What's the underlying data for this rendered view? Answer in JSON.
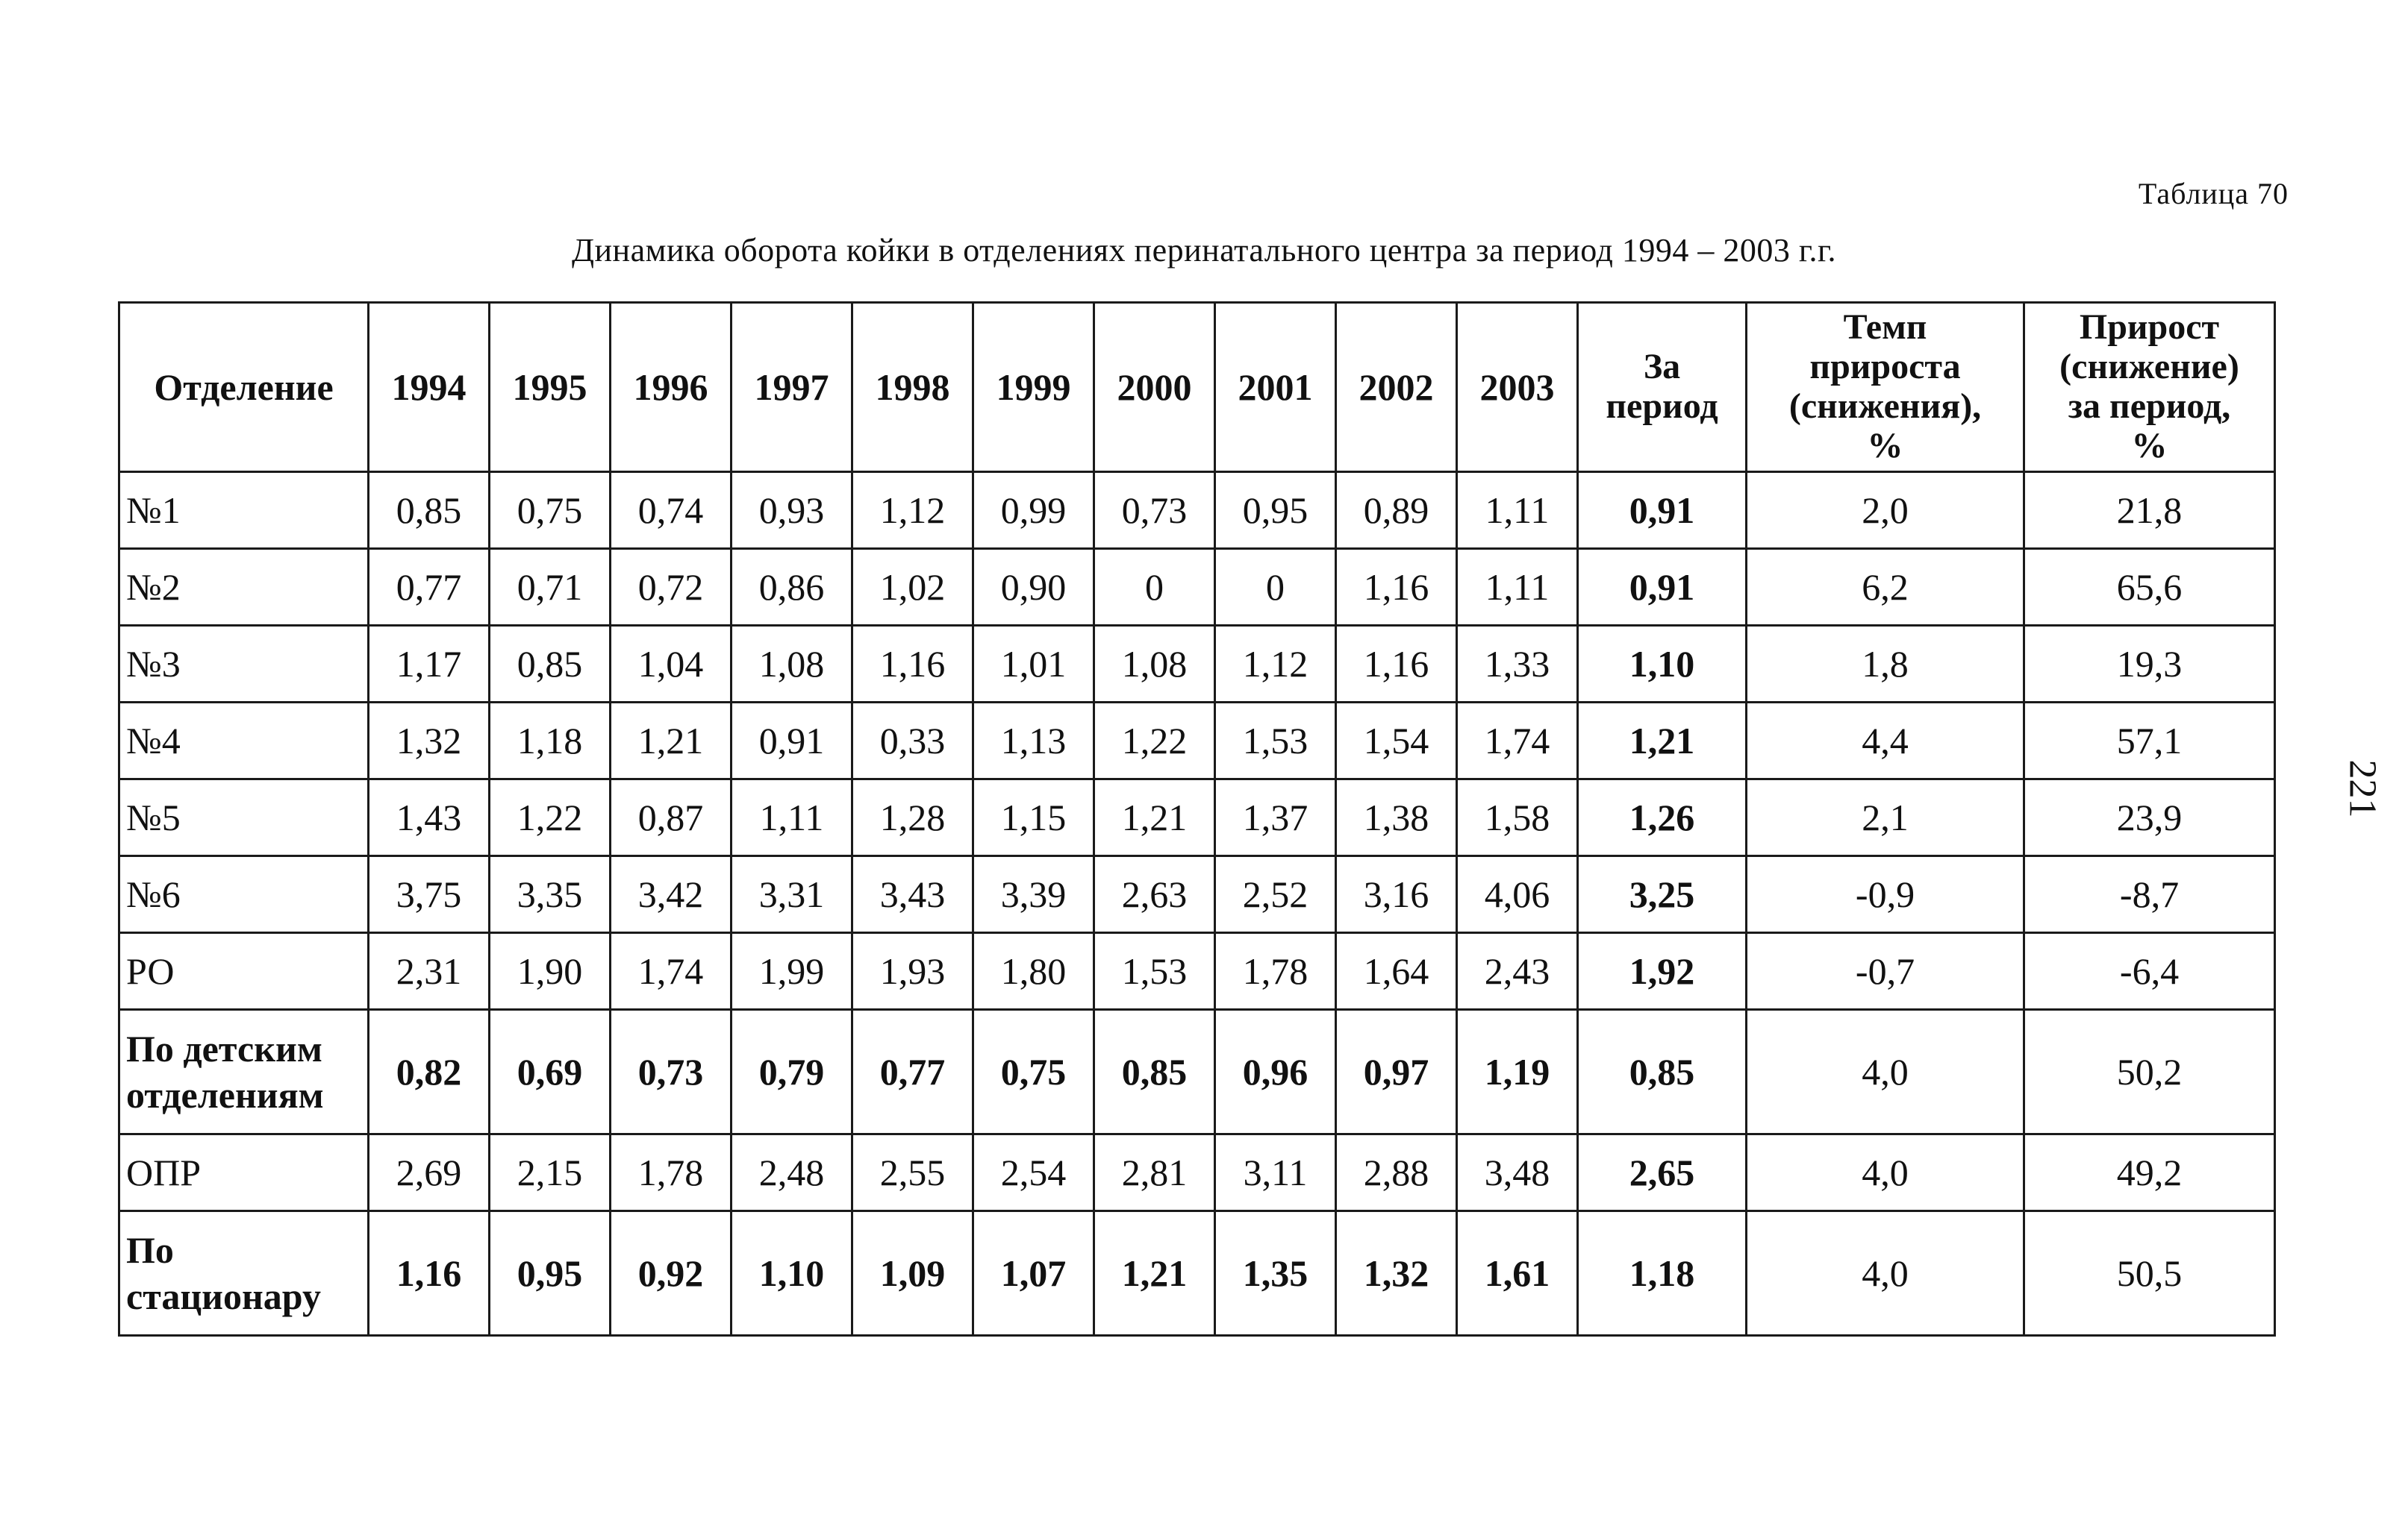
{
  "table_number": "Таблица 70",
  "caption": "Динамика оборота койки в отделениях перинатального центра за период 1994 – 2003 г.г.",
  "page_number": "221",
  "headers": {
    "department": "Отделение",
    "years": [
      "1994",
      "1995",
      "1996",
      "1997",
      "1998",
      "1999",
      "2000",
      "2001",
      "2002",
      "2003"
    ],
    "period_line1": "За",
    "period_line2": "период",
    "growth_rate_line1": "Темп",
    "growth_rate_line2": "прироста",
    "growth_rate_line3": "(снижения),",
    "growth_rate_line4": "%",
    "growth_line1": "Прирост",
    "growth_line2": "(снижение)",
    "growth_line3": "за период,",
    "growth_line4": "%"
  },
  "rows": [
    {
      "dept": "№1",
      "values": [
        "0,85",
        "0,75",
        "0,74",
        "0,93",
        "1,12",
        "0,99",
        "0,73",
        "0,95",
        "0,89",
        "1,11"
      ],
      "period": "0,91",
      "rate": "2,0",
      "growth": "21,8"
    },
    {
      "dept": "№2",
      "values": [
        "0,77",
        "0,71",
        "0,72",
        "0,86",
        "1,02",
        "0,90",
        "0",
        "0",
        "1,16",
        "1,11"
      ],
      "period": "0,91",
      "rate": "6,2",
      "growth": "65,6"
    },
    {
      "dept": "№3",
      "values": [
        "1,17",
        "0,85",
        "1,04",
        "1,08",
        "1,16",
        "1,01",
        "1,08",
        "1,12",
        "1,16",
        "1,33"
      ],
      "period": "1,10",
      "rate": "1,8",
      "growth": "19,3"
    },
    {
      "dept": "№4",
      "values": [
        "1,32",
        "1,18",
        "1,21",
        "0,91",
        "0,33",
        "1,13",
        "1,22",
        "1,53",
        "1,54",
        "1,74"
      ],
      "period": "1,21",
      "rate": "4,4",
      "growth": "57,1"
    },
    {
      "dept": "№5",
      "values": [
        "1,43",
        "1,22",
        "0,87",
        "1,11",
        "1,28",
        "1,15",
        "1,21",
        "1,37",
        "1,38",
        "1,58"
      ],
      "period": "1,26",
      "rate": "2,1",
      "growth": "23,9"
    },
    {
      "dept": "№6",
      "values": [
        "3,75",
        "3,35",
        "3,42",
        "3,31",
        "3,43",
        "3,39",
        "2,63",
        "2,52",
        "3,16",
        "4,06"
      ],
      "period": "3,25",
      "rate": "-0,9",
      "growth": "-8,7"
    },
    {
      "dept": "РО",
      "values": [
        "2,31",
        "1,90",
        "1,74",
        "1,99",
        "1,93",
        "1,80",
        "1,53",
        "1,78",
        "1,64",
        "2,43"
      ],
      "period": "1,92",
      "rate": "-0,7",
      "growth": "-6,4"
    },
    {
      "dept_line1": "По детским",
      "dept_line2": "отделениям",
      "values": [
        "0,82",
        "0,69",
        "0,73",
        "0,79",
        "0,77",
        "0,75",
        "0,85",
        "0,96",
        "0,97",
        "1,19"
      ],
      "period": "0,85",
      "rate": "4,0",
      "growth": "50,2"
    },
    {
      "dept": "ОПР",
      "values": [
        "2,69",
        "2,15",
        "1,78",
        "2,48",
        "2,55",
        "2,54",
        "2,81",
        "3,11",
        "2,88",
        "3,48"
      ],
      "period": "2,65",
      "rate": "4,0",
      "growth": "49,2"
    },
    {
      "dept_line1": "По",
      "dept_line2": "стационару",
      "values": [
        "1,16",
        "0,95",
        "0,92",
        "1,10",
        "1,09",
        "1,07",
        "1,21",
        "1,35",
        "1,32",
        "1,61"
      ],
      "period": "1,18",
      "rate": "4,0",
      "growth": "50,5"
    }
  ]
}
